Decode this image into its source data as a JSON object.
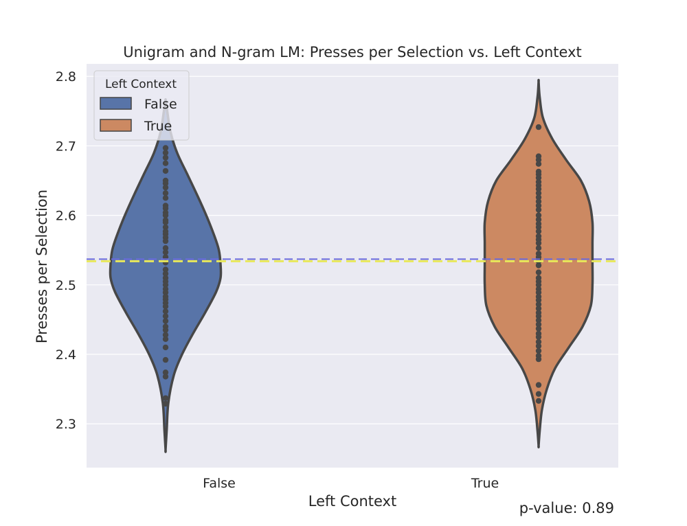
{
  "chart_data": {
    "type": "violin",
    "title": "Unigram and N-gram LM: Presses per Selection vs. Left Context",
    "xlabel": "Left Context",
    "ylabel": "Presses per Selection",
    "ylim": [
      2.237,
      2.818
    ],
    "y_ticks": [
      "2.3",
      "2.4",
      "2.5",
      "2.6",
      "2.7",
      "2.8"
    ],
    "y_tick_values": [
      2.3,
      2.4,
      2.5,
      2.6,
      2.7,
      2.8
    ],
    "categories": [
      "False",
      "True"
    ],
    "grid": true,
    "legend": {
      "title": "Left Context",
      "placement": "upper-left",
      "entries": [
        "False",
        "True"
      ]
    },
    "series": [
      {
        "name": "False",
        "color": "#5874a8",
        "density": [
          [
            2.263,
            0.0
          ],
          [
            2.29,
            0.02
          ],
          [
            2.33,
            0.05
          ],
          [
            2.37,
            0.15
          ],
          [
            2.4,
            0.3
          ],
          [
            2.43,
            0.5
          ],
          [
            2.46,
            0.72
          ],
          [
            2.49,
            0.92
          ],
          [
            2.51,
            1.0
          ],
          [
            2.53,
            1.0
          ],
          [
            2.55,
            0.97
          ],
          [
            2.57,
            0.89
          ],
          [
            2.6,
            0.74
          ],
          [
            2.63,
            0.57
          ],
          [
            2.66,
            0.39
          ],
          [
            2.69,
            0.21
          ],
          [
            2.72,
            0.09
          ],
          [
            2.75,
            0.03
          ],
          [
            2.765,
            0.0
          ]
        ],
        "points": [
          2.697,
          2.69,
          2.683,
          2.675,
          2.664,
          2.65,
          2.646,
          2.64,
          2.632,
          2.625,
          2.614,
          2.61,
          2.604,
          2.6,
          2.593,
          2.59,
          2.583,
          2.577,
          2.573,
          2.568,
          2.563,
          2.553,
          2.547,
          2.54,
          2.532,
          2.522,
          2.516,
          2.51,
          2.505,
          2.5,
          2.494,
          2.489,
          2.483,
          2.479,
          2.474,
          2.469,
          2.462,
          2.455,
          2.448,
          2.44,
          2.435,
          2.428,
          2.422,
          2.41,
          2.392,
          2.374,
          2.368,
          2.337,
          2.329
        ]
      },
      {
        "name": "True",
        "color": "#cc8962",
        "density": [
          [
            2.269,
            0.0
          ],
          [
            2.29,
            0.02
          ],
          [
            2.32,
            0.06
          ],
          [
            2.35,
            0.15
          ],
          [
            2.38,
            0.3
          ],
          [
            2.41,
            0.55
          ],
          [
            2.44,
            0.8
          ],
          [
            2.47,
            0.95
          ],
          [
            2.5,
            0.98
          ],
          [
            2.53,
            0.98
          ],
          [
            2.56,
            0.98
          ],
          [
            2.59,
            0.98
          ],
          [
            2.62,
            0.92
          ],
          [
            2.65,
            0.77
          ],
          [
            2.68,
            0.5
          ],
          [
            2.71,
            0.25
          ],
          [
            2.74,
            0.08
          ],
          [
            2.77,
            0.02
          ],
          [
            2.792,
            0.0
          ]
        ],
        "points": [
          2.727,
          2.685,
          2.68,
          2.674,
          2.663,
          2.659,
          2.654,
          2.648,
          2.643,
          2.638,
          2.632,
          2.626,
          2.62,
          2.614,
          2.608,
          2.6,
          2.594,
          2.588,
          2.583,
          2.577,
          2.57,
          2.565,
          2.56,
          2.553,
          2.545,
          2.54,
          2.534,
          2.528,
          2.518,
          2.51,
          2.505,
          2.5,
          2.494,
          2.489,
          2.483,
          2.478,
          2.472,
          2.466,
          2.46,
          2.455,
          2.449,
          2.443,
          2.437,
          2.43,
          2.425,
          2.418,
          2.412,
          2.405,
          2.398,
          2.393,
          2.356,
          2.343,
          2.333
        ]
      }
    ],
    "reference_lines": [
      {
        "y": 2.537,
        "color": "#6a6add",
        "style": "dashed"
      },
      {
        "y": 2.534,
        "color": "#e8e85a",
        "style": "dashed"
      }
    ],
    "annotation": "p-value: 0.89"
  }
}
